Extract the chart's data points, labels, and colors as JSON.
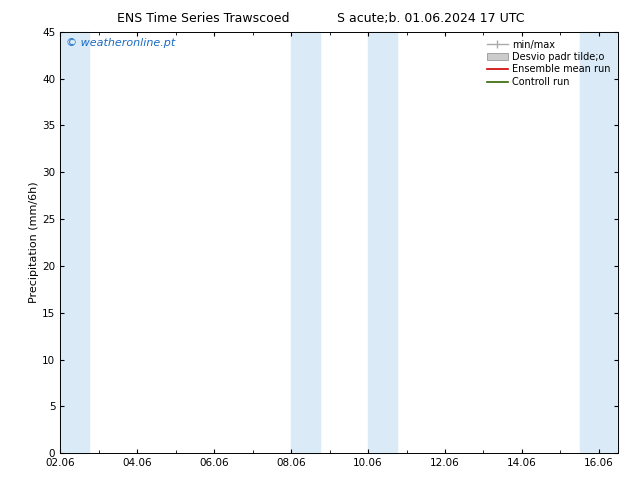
{
  "title_left": "ENS Time Series Trawscoed",
  "title_right": "S acute;b. 01.06.2024 17 UTC",
  "ylabel": "Precipitation (mm/6h)",
  "ylim": [
    0,
    45
  ],
  "yticks": [
    0,
    5,
    10,
    15,
    20,
    25,
    30,
    35,
    40,
    45
  ],
  "xlim": [
    0.0,
    14.5
  ],
  "xtick_labels": [
    "02.06",
    "04.06",
    "06.06",
    "08.06",
    "10.06",
    "12.06",
    "14.06",
    "16.06"
  ],
  "xtick_positions": [
    0.0,
    2.0,
    4.0,
    6.0,
    8.0,
    10.0,
    12.0,
    14.0
  ],
  "blue_bands": [
    [
      0.0,
      0.75
    ],
    [
      6.0,
      6.75
    ],
    [
      8.0,
      8.75
    ],
    [
      13.5,
      14.5
    ]
  ],
  "watermark": "© weatheronline.pt",
  "watermark_color": "#1a6bc4",
  "bg_color": "#ffffff",
  "band_color": "#daeaf7",
  "legend_entries": [
    "min/max",
    "Desvio padr tilde;o",
    "Ensemble mean run",
    "Controll run"
  ],
  "ensemble_color": "#cc0000",
  "control_color": "#336600",
  "title_fontsize": 9,
  "axis_fontsize": 8,
  "tick_fontsize": 7.5,
  "watermark_fontsize": 8,
  "legend_fontsize": 7
}
